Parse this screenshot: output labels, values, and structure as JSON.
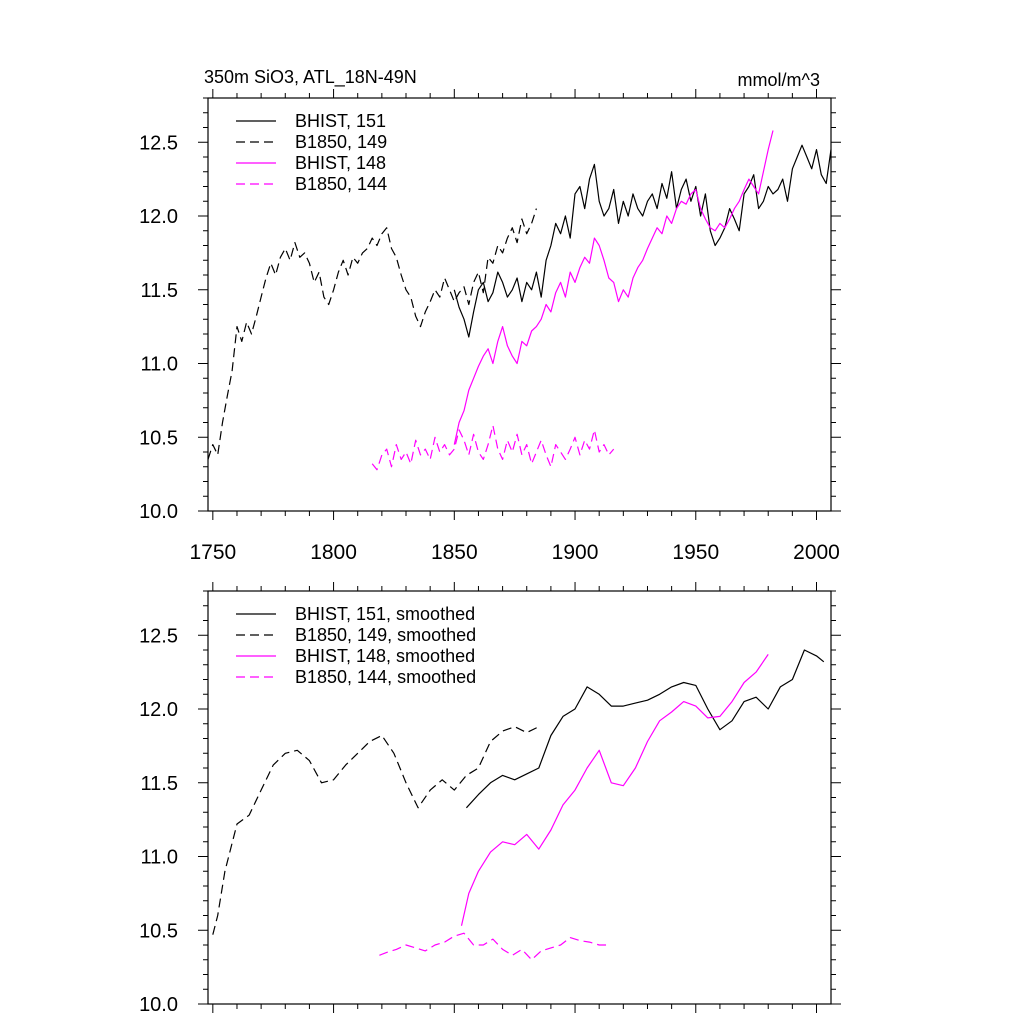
{
  "colors": {
    "black": "#000000",
    "magenta": "#ff00ff"
  },
  "chart_data": [
    {
      "type": "line",
      "title": "350m SiO3, ATL_18N-49N",
      "units": "mmol/m^3",
      "xlim": [
        1748,
        2006
      ],
      "ylim": [
        10.0,
        12.8
      ],
      "xticks": [
        1750,
        1800,
        1850,
        1900,
        1950,
        2000
      ],
      "yticks": [
        10.0,
        10.5,
        11.0,
        11.5,
        12.0,
        12.5
      ],
      "series": [
        {
          "name": "BHIST, 151",
          "color": "#000000",
          "dash": "solid",
          "x": [
            1850,
            1852,
            1854,
            1856,
            1858,
            1860,
            1862,
            1864,
            1866,
            1868,
            1870,
            1872,
            1874,
            1876,
            1878,
            1880,
            1882,
            1884,
            1886,
            1888,
            1890,
            1892,
            1894,
            1896,
            1898,
            1900,
            1902,
            1904,
            1906,
            1908,
            1910,
            1912,
            1914,
            1916,
            1918,
            1920,
            1922,
            1924,
            1926,
            1928,
            1930,
            1932,
            1934,
            1936,
            1938,
            1940,
            1942,
            1944,
            1946,
            1948,
            1950,
            1952,
            1954,
            1956,
            1958,
            1960,
            1962,
            1964,
            1966,
            1968,
            1970,
            1972,
            1974,
            1976,
            1978,
            1980,
            1982,
            1984,
            1986,
            1988,
            1990,
            1992,
            1994,
            1996,
            1998,
            2000,
            2002,
            2004,
            2006
          ],
          "y": [
            11.5,
            11.38,
            11.3,
            11.18,
            11.35,
            11.5,
            11.55,
            11.42,
            11.48,
            11.62,
            11.55,
            11.45,
            11.5,
            11.58,
            11.42,
            11.55,
            11.5,
            11.62,
            11.45,
            11.7,
            11.8,
            11.95,
            11.88,
            12.0,
            11.85,
            12.15,
            12.2,
            12.05,
            12.25,
            12.35,
            12.1,
            12.0,
            12.05,
            12.18,
            11.95,
            12.1,
            12.0,
            12.15,
            12.05,
            12.0,
            12.1,
            12.15,
            12.05,
            12.22,
            12.12,
            12.3,
            12.05,
            12.18,
            12.25,
            12.1,
            12.2,
            12.0,
            12.15,
            11.9,
            11.8,
            11.85,
            11.92,
            12.05,
            11.98,
            11.9,
            12.15,
            12.2,
            12.28,
            12.05,
            12.1,
            12.2,
            12.15,
            12.18,
            12.25,
            12.1,
            12.32,
            12.4,
            12.48,
            12.4,
            12.32,
            12.45,
            12.28,
            12.22,
            12.45
          ]
        },
        {
          "name": "B1850, 149",
          "color": "#000000",
          "dash": "dashed",
          "x": [
            1748,
            1750,
            1752,
            1754,
            1756,
            1758,
            1760,
            1762,
            1764,
            1766,
            1768,
            1770,
            1772,
            1774,
            1776,
            1778,
            1780,
            1782,
            1784,
            1786,
            1788,
            1790,
            1792,
            1794,
            1796,
            1798,
            1800,
            1802,
            1804,
            1806,
            1808,
            1810,
            1812,
            1814,
            1816,
            1818,
            1820,
            1822,
            1824,
            1826,
            1828,
            1830,
            1832,
            1834,
            1836,
            1838,
            1840,
            1842,
            1844,
            1846,
            1848,
            1850,
            1852,
            1854,
            1856,
            1858,
            1860,
            1862,
            1864,
            1866,
            1868,
            1870,
            1872,
            1874,
            1876,
            1878,
            1880,
            1882,
            1884
          ],
          "y": [
            10.35,
            10.45,
            10.38,
            10.6,
            10.78,
            10.95,
            11.25,
            11.15,
            11.28,
            11.2,
            11.32,
            11.45,
            11.58,
            11.68,
            11.6,
            11.72,
            11.78,
            11.7,
            11.82,
            11.72,
            11.75,
            11.68,
            11.55,
            11.62,
            11.45,
            11.4,
            11.5,
            11.62,
            11.7,
            11.6,
            11.72,
            11.68,
            11.75,
            11.78,
            11.85,
            11.8,
            11.88,
            11.92,
            11.78,
            11.72,
            11.6,
            11.5,
            11.45,
            11.32,
            11.25,
            11.35,
            11.42,
            11.5,
            11.45,
            11.58,
            11.5,
            11.42,
            11.48,
            11.52,
            11.4,
            11.55,
            11.62,
            11.48,
            11.72,
            11.68,
            11.8,
            11.75,
            11.85,
            11.92,
            11.82,
            11.98,
            11.88,
            11.95,
            12.05
          ]
        },
        {
          "name": "BHIST, 148",
          "color": "#ff00ff",
          "dash": "solid",
          "x": [
            1850,
            1852,
            1854,
            1856,
            1858,
            1860,
            1862,
            1864,
            1866,
            1868,
            1870,
            1872,
            1874,
            1876,
            1878,
            1880,
            1882,
            1884,
            1886,
            1888,
            1890,
            1892,
            1894,
            1896,
            1898,
            1900,
            1902,
            1904,
            1906,
            1908,
            1910,
            1912,
            1914,
            1916,
            1918,
            1920,
            1922,
            1924,
            1926,
            1928,
            1930,
            1932,
            1934,
            1936,
            1938,
            1940,
            1942,
            1944,
            1946,
            1948,
            1950,
            1952,
            1954,
            1956,
            1958,
            1960,
            1962,
            1964,
            1966,
            1968,
            1970,
            1972,
            1974,
            1976,
            1978,
            1980,
            1982
          ],
          "y": [
            10.45,
            10.6,
            10.68,
            10.82,
            10.9,
            10.98,
            11.05,
            11.1,
            11.0,
            11.15,
            11.25,
            11.12,
            11.05,
            11.0,
            11.15,
            11.12,
            11.22,
            11.25,
            11.3,
            11.4,
            11.35,
            11.48,
            11.55,
            11.45,
            11.62,
            11.55,
            11.65,
            11.72,
            11.68,
            11.85,
            11.8,
            11.7,
            11.58,
            11.55,
            11.42,
            11.5,
            11.45,
            11.58,
            11.65,
            11.7,
            11.78,
            11.85,
            11.92,
            11.88,
            12.0,
            11.95,
            12.05,
            12.1,
            12.08,
            12.15,
            12.18,
            12.05,
            11.98,
            11.92,
            11.9,
            11.95,
            11.92,
            11.98,
            12.05,
            12.1,
            12.18,
            12.25,
            12.2,
            12.15,
            12.3,
            12.45,
            12.58
          ]
        },
        {
          "name": "B1850, 144",
          "color": "#ff00ff",
          "dash": "dashed",
          "x": [
            1816,
            1818,
            1820,
            1822,
            1824,
            1826,
            1828,
            1830,
            1832,
            1834,
            1836,
            1838,
            1840,
            1842,
            1844,
            1846,
            1848,
            1850,
            1852,
            1854,
            1856,
            1858,
            1860,
            1862,
            1864,
            1866,
            1868,
            1870,
            1872,
            1874,
            1876,
            1878,
            1880,
            1882,
            1884,
            1886,
            1888,
            1890,
            1892,
            1894,
            1896,
            1898,
            1900,
            1902,
            1904,
            1906,
            1908,
            1910,
            1912,
            1914,
            1916
          ],
          "y": [
            10.32,
            10.28,
            10.38,
            10.42,
            10.3,
            10.45,
            10.35,
            10.4,
            10.32,
            10.48,
            10.38,
            10.42,
            10.35,
            10.5,
            10.4,
            10.45,
            10.38,
            10.42,
            10.55,
            10.48,
            10.38,
            10.52,
            10.4,
            10.35,
            10.45,
            10.58,
            10.42,
            10.35,
            10.48,
            10.4,
            10.52,
            10.38,
            10.45,
            10.32,
            10.4,
            10.48,
            10.38,
            10.3,
            10.45,
            10.4,
            10.35,
            10.42,
            10.5,
            10.38,
            10.48,
            10.42,
            10.55,
            10.4,
            10.45,
            10.38,
            10.42
          ]
        }
      ]
    },
    {
      "type": "line",
      "xlim": [
        1748,
        2006
      ],
      "ylim": [
        10.0,
        12.8
      ],
      "xticks": [
        1750,
        1800,
        1850,
        1900,
        1950,
        2000
      ],
      "yticks": [
        10.0,
        10.5,
        11.0,
        11.5,
        12.0,
        12.5
      ],
      "series": [
        {
          "name": "BHIST, 151, smoothed",
          "color": "#000000",
          "dash": "solid",
          "x": [
            1855,
            1860,
            1865,
            1870,
            1875,
            1880,
            1885,
            1890,
            1895,
            1900,
            1905,
            1910,
            1915,
            1920,
            1925,
            1930,
            1935,
            1940,
            1945,
            1950,
            1955,
            1960,
            1965,
            1970,
            1975,
            1980,
            1985,
            1990,
            1995,
            2000,
            2003
          ],
          "y": [
            11.33,
            11.42,
            11.5,
            11.55,
            11.52,
            11.56,
            11.6,
            11.82,
            11.95,
            12.0,
            12.15,
            12.1,
            12.02,
            12.02,
            12.04,
            12.06,
            12.1,
            12.15,
            12.18,
            12.16,
            12.0,
            11.86,
            11.92,
            12.05,
            12.08,
            12.0,
            12.15,
            12.2,
            12.4,
            12.36,
            12.32
          ]
        },
        {
          "name": "B1850, 149, smoothed",
          "color": "#000000",
          "dash": "dashed",
          "x": [
            1750,
            1752,
            1755,
            1760,
            1765,
            1770,
            1775,
            1780,
            1785,
            1790,
            1795,
            1800,
            1805,
            1810,
            1815,
            1820,
            1825,
            1830,
            1835,
            1840,
            1845,
            1850,
            1855,
            1860,
            1865,
            1870,
            1875,
            1880,
            1885
          ],
          "y": [
            10.47,
            10.6,
            10.9,
            11.22,
            11.28,
            11.45,
            11.62,
            11.7,
            11.72,
            11.65,
            11.5,
            11.52,
            11.62,
            11.7,
            11.78,
            11.82,
            11.7,
            11.5,
            11.33,
            11.45,
            11.52,
            11.45,
            11.55,
            11.6,
            11.78,
            11.85,
            11.88,
            11.84,
            11.88
          ]
        },
        {
          "name": "BHIST, 148, smoothed",
          "color": "#ff00ff",
          "dash": "solid",
          "x": [
            1853,
            1856,
            1860,
            1865,
            1870,
            1875,
            1880,
            1885,
            1890,
            1895,
            1900,
            1905,
            1910,
            1915,
            1920,
            1925,
            1930,
            1935,
            1940,
            1945,
            1950,
            1955,
            1960,
            1965,
            1970,
            1975,
            1980
          ],
          "y": [
            10.53,
            10.75,
            10.9,
            11.03,
            11.1,
            11.08,
            11.15,
            11.05,
            11.18,
            11.35,
            11.45,
            11.6,
            11.72,
            11.5,
            11.48,
            11.6,
            11.78,
            11.92,
            11.98,
            12.05,
            12.02,
            11.94,
            11.95,
            12.05,
            12.18,
            12.25,
            12.37
          ]
        },
        {
          "name": "B1850, 144, smoothed",
          "color": "#ff00ff",
          "dash": "dashed",
          "x": [
            1819,
            1822,
            1826,
            1830,
            1834,
            1838,
            1842,
            1846,
            1850,
            1854,
            1858,
            1862,
            1866,
            1870,
            1874,
            1878,
            1882,
            1886,
            1890,
            1894,
            1898,
            1902,
            1906,
            1910,
            1913
          ],
          "y": [
            10.33,
            10.35,
            10.37,
            10.4,
            10.38,
            10.36,
            10.4,
            10.42,
            10.46,
            10.48,
            10.4,
            10.4,
            10.44,
            10.37,
            10.33,
            10.37,
            10.3,
            10.36,
            10.38,
            10.4,
            10.45,
            10.43,
            10.42,
            10.4,
            10.4
          ]
        }
      ]
    }
  ]
}
